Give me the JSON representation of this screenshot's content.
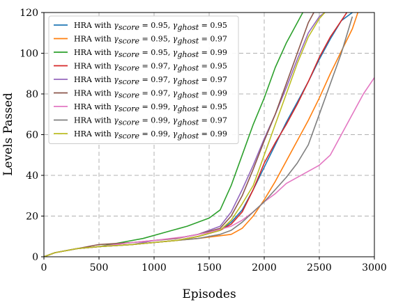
{
  "chart_data": {
    "type": "line",
    "title": "",
    "xlabel": "Episodes",
    "ylabel": "Levels Passed",
    "xlim": [
      0,
      3000
    ],
    "ylim": [
      0,
      120
    ],
    "xticks": [
      "0",
      "500",
      "1000",
      "1500",
      "2000",
      "2500",
      "3000"
    ],
    "yticks": [
      "0",
      "20",
      "40",
      "60",
      "80",
      "100",
      "120"
    ],
    "grid": true,
    "legend_position": "top-left",
    "series": [
      {
        "name": "HRA with γscore = 0.95, γghost = 0.95",
        "prefix": "HRA with",
        "g1": "0.95",
        "g2": "0.95",
        "color": "#1f77b4",
        "x": [
          0,
          100,
          300,
          500,
          800,
          1000,
          1200,
          1400,
          1600,
          1700,
          1800,
          1900,
          2000,
          2100,
          2200,
          2300,
          2400,
          2500,
          2600,
          2700,
          2800
        ],
        "y": [
          0,
          2,
          4,
          5,
          6,
          7,
          8,
          10,
          13,
          17,
          23,
          33,
          44,
          55,
          66,
          76,
          86,
          97,
          107,
          116,
          120
        ]
      },
      {
        "name": "HRA with γscore = 0.95, γghost = 0.97",
        "prefix": "HRA with",
        "g1": "0.95",
        "g2": "0.97",
        "color": "#ff7f0e",
        "x": [
          0,
          100,
          300,
          500,
          800,
          1000,
          1200,
          1400,
          1700,
          1800,
          1900,
          2000,
          2100,
          2200,
          2300,
          2400,
          2500,
          2600,
          2700,
          2800,
          2850
        ],
        "y": [
          0,
          2,
          4,
          5,
          6,
          7,
          8,
          9,
          11,
          14,
          20,
          28,
          37,
          47,
          57,
          67,
          78,
          90,
          101,
          112,
          120
        ]
      },
      {
        "name": "HRA with γscore = 0.95, γghost = 0.99",
        "prefix": "HRA with",
        "g1": "0.95",
        "g2": "0.99",
        "color": "#2ca02c",
        "x": [
          0,
          100,
          300,
          500,
          700,
          900,
          1100,
          1300,
          1500,
          1600,
          1700,
          1800,
          1900,
          2000,
          2100,
          2200,
          2300,
          2350
        ],
        "y": [
          0,
          2,
          4,
          5,
          7,
          9,
          12,
          15,
          19,
          23,
          35,
          50,
          65,
          78,
          93,
          105,
          115,
          120
        ]
      },
      {
        "name": "HRA with γscore = 0.97, γghost = 0.95",
        "prefix": "HRA with",
        "g1": "0.97",
        "g2": "0.95",
        "color": "#d62728",
        "x": [
          0,
          100,
          300,
          500,
          800,
          1000,
          1200,
          1400,
          1600,
          1700,
          1800,
          1900,
          2000,
          2100,
          2200,
          2300,
          2400,
          2500,
          2600,
          2700,
          2750
        ],
        "y": [
          0,
          2,
          4,
          5,
          6,
          7,
          8,
          10,
          13,
          16,
          22,
          33,
          46,
          56,
          65,
          75,
          86,
          98,
          108,
          116,
          120
        ]
      },
      {
        "name": "HRA with γscore = 0.97, γghost = 0.97",
        "prefix": "HRA with",
        "g1": "0.97",
        "g2": "0.97",
        "color": "#9467bd",
        "x": [
          0,
          100,
          300,
          500,
          800,
          1000,
          1200,
          1400,
          1600,
          1700,
          1800,
          1900,
          2000,
          2100,
          2200,
          2300,
          2400,
          2500,
          2550
        ],
        "y": [
          0,
          2,
          4,
          5,
          6,
          8,
          9,
          11,
          15,
          22,
          33,
          45,
          58,
          70,
          83,
          97,
          110,
          118,
          120
        ]
      },
      {
        "name": "HRA with γscore = 0.97, γghost = 0.99",
        "prefix": "HRA with",
        "g1": "0.97",
        "g2": "0.99",
        "color": "#8c564b",
        "x": [
          0,
          100,
          300,
          500,
          800,
          1000,
          1200,
          1400,
          1600,
          1700,
          1800,
          1900,
          2000,
          2100,
          2200,
          2300,
          2400,
          2450
        ],
        "y": [
          0,
          2,
          4,
          6,
          7,
          8,
          9,
          11,
          14,
          20,
          30,
          43,
          57,
          70,
          85,
          100,
          115,
          120
        ]
      },
      {
        "name": "HRA with γscore = 0.99, γghost = 0.95",
        "prefix": "HRA with",
        "g1": "0.99",
        "g2": "0.95",
        "color": "#e377c2",
        "x": [
          0,
          100,
          300,
          500,
          800,
          1000,
          1300,
          1500,
          1700,
          1800,
          1900,
          2000,
          2100,
          2200,
          2300,
          2400,
          2500,
          2600,
          2700,
          2800,
          2900,
          3000
        ],
        "y": [
          0,
          2,
          4,
          5,
          7,
          8,
          10,
          12,
          15,
          18,
          22,
          27,
          31,
          36,
          39,
          42,
          45,
          50,
          60,
          70,
          80,
          88
        ]
      },
      {
        "name": "HRA with γscore = 0.99, γghost = 0.97",
        "prefix": "HRA with",
        "g1": "0.99",
        "g2": "0.97",
        "color": "#7f7f7f",
        "x": [
          0,
          100,
          300,
          500,
          800,
          1000,
          1200,
          1400,
          1600,
          1700,
          1800,
          1900,
          2000,
          2100,
          2200,
          2300,
          2400,
          2500,
          2600,
          2700,
          2800
        ],
        "y": [
          0,
          2,
          4,
          5,
          6,
          7,
          8,
          9,
          11,
          13,
          17,
          22,
          27,
          33,
          39,
          46,
          55,
          70,
          85,
          100,
          118
        ]
      },
      {
        "name": "HRA with γscore = 0.99, γghost = 0.99",
        "prefix": "HRA with",
        "g1": "0.99",
        "g2": "0.99",
        "color": "#bcbd22",
        "x": [
          0,
          100,
          300,
          500,
          800,
          1000,
          1200,
          1400,
          1600,
          1700,
          1800,
          1900,
          2000,
          2100,
          2200,
          2300,
          2400,
          2500,
          2550
        ],
        "y": [
          0,
          2,
          4,
          5,
          6,
          7,
          8,
          10,
          13,
          18,
          26,
          35,
          50,
          65,
          80,
          95,
          108,
          117,
          120
        ]
      }
    ]
  }
}
